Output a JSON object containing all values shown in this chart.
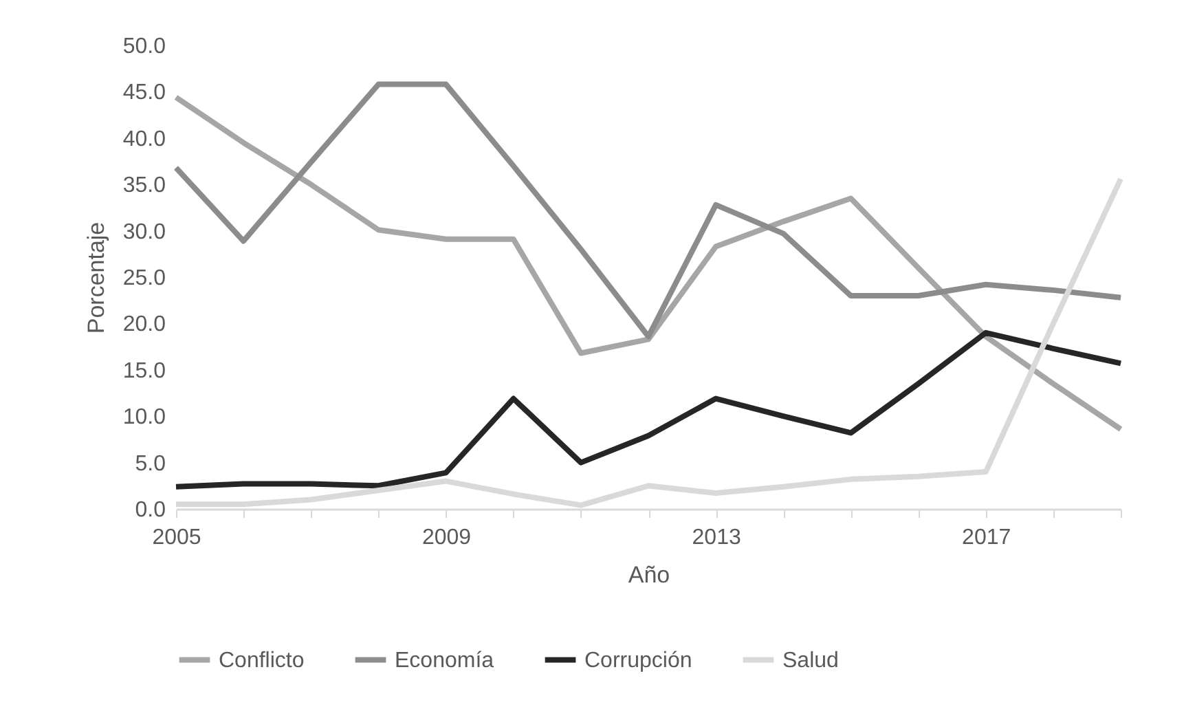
{
  "chart_data": {
    "type": "line",
    "xlabel": "Año",
    "ylabel": "Porcentaje",
    "x": [
      2005,
      2006,
      2007,
      2008,
      2009,
      2010,
      2011,
      2012,
      2013,
      2014,
      2015,
      2016,
      2017,
      2018,
      2019
    ],
    "xlim": [
      2005,
      2019
    ],
    "xticks": [
      2005,
      {
        "value": 2006,
        "label": null
      },
      {
        "value": 2007,
        "label": null
      },
      {
        "value": 2008,
        "label": null
      },
      2009,
      {
        "value": 2010,
        "label": null
      },
      {
        "value": 2011,
        "label": null
      },
      {
        "value": 2012,
        "label": null
      },
      2013,
      {
        "value": 2014,
        "label": null
      },
      {
        "value": 2015,
        "label": null
      },
      {
        "value": 2016,
        "label": null
      },
      2017,
      {
        "value": 2018,
        "label": null
      },
      {
        "value": 2019,
        "label": null
      }
    ],
    "ylim": [
      0,
      50
    ],
    "yticks": [
      {
        "value": 0,
        "label": "0.0"
      },
      {
        "value": 5,
        "label": "5.0"
      },
      {
        "value": 10,
        "label": "10.0"
      },
      {
        "value": 15,
        "label": "15.0"
      },
      {
        "value": 20,
        "label": "20.0"
      },
      {
        "value": 25,
        "label": "25.0"
      },
      {
        "value": 30,
        "label": "30.0"
      },
      {
        "value": 35,
        "label": "35.0"
      },
      {
        "value": 40,
        "label": "40.0"
      },
      {
        "value": 45,
        "label": "45.0"
      },
      {
        "value": 50,
        "label": "50.0"
      }
    ],
    "series": [
      {
        "name": "Conflicto",
        "color": "#a6a6a6",
        "values": [
          44.4,
          39.5,
          35,
          30.1,
          29.1,
          29.1,
          16.8,
          18.3,
          28.3,
          31,
          33.5,
          26,
          18.6,
          13.5,
          8.6
        ]
      },
      {
        "name": "Economía",
        "color": "#8c8c8c",
        "values": [
          36.8,
          28.9,
          37.4,
          45.8,
          45.8,
          37,
          28,
          18.6,
          32.8,
          29.7,
          23,
          23,
          24.2,
          23.6,
          22.8
        ]
      },
      {
        "name": "Corrupción",
        "color": "#262626",
        "values": [
          2.4,
          2.7,
          2.7,
          2.5,
          3.9,
          11.9,
          5,
          7.9,
          11.9,
          10,
          8.2,
          13.5,
          19,
          17.3,
          15.7
        ]
      },
      {
        "name": "Salud",
        "color": "#d9d9d9",
        "values": [
          0.5,
          0.5,
          1,
          2,
          3,
          1.6,
          0.4,
          2.5,
          1.7,
          2.4,
          3.2,
          3.5,
          4,
          20,
          35.6
        ]
      }
    ],
    "grid": false,
    "legend": "bottom",
    "marker": "none",
    "line_style": "solid"
  }
}
